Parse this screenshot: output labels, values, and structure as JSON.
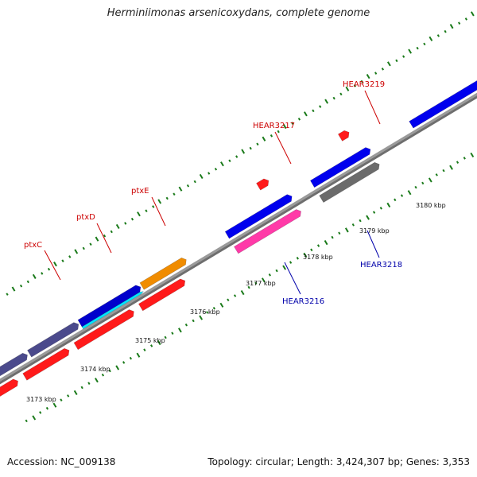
{
  "title": "Herminiimonas arsenicoxydans, complete genome",
  "footer": {
    "accession": "Accession: NC_009138",
    "topology": "Topology: circular; Length: 3,424,307 bp; Genes: 3,353"
  },
  "colors": {
    "background": "#ffffff",
    "backbone": "#888888",
    "tick": "#1a7a1a",
    "gene_label_forward": "#cc0000",
    "gene_label_reverse": "#0000aa"
  },
  "axis": {
    "unit": "kbp",
    "labels": [
      "3173 kbp",
      "3174 kbp",
      "3175 kbp",
      "3176 kbp",
      "3177 kbp",
      "3178 kbp",
      "3179 kbp",
      "3180 kbp"
    ]
  },
  "gene_labels": [
    {
      "text": "ptxC",
      "strand": "forward"
    },
    {
      "text": "ptxD",
      "strand": "forward"
    },
    {
      "text": "ptxE",
      "strand": "forward"
    },
    {
      "text": "HEAR3217",
      "strand": "forward"
    },
    {
      "text": "HEAR3219",
      "strand": "forward"
    },
    {
      "text": "HEAR3216",
      "strand": "reverse"
    },
    {
      "text": "HEAR3218",
      "strand": "reverse"
    }
  ],
  "features": [
    {
      "name": "ptxC",
      "color": "#4b4a8c",
      "strand": "forward"
    },
    {
      "name": "ptxD",
      "color": "#0000cc",
      "strand": "forward"
    },
    {
      "name": "ptxE",
      "color": "#f08c00",
      "strand": "forward"
    },
    {
      "name": "HEAR3217",
      "color": "#ff0000",
      "strand": "forward"
    },
    {
      "name": "HEAR3219",
      "color": "#ff0000",
      "strand": "forward"
    },
    {
      "name": "HEAR3216",
      "color": "#ff3aa8",
      "strand": "reverse"
    },
    {
      "name": "HEAR3218",
      "color": "#6b6b6b",
      "strand": "reverse"
    }
  ]
}
